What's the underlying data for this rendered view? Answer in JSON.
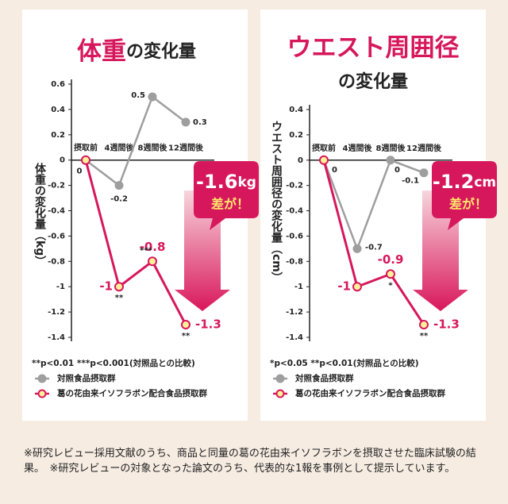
{
  "chart_data": [
    {
      "type": "line",
      "title": {
        "main": "体重",
        "sub": "の変化量"
      },
      "y_label": "体重の変化量（kg）",
      "categories": [
        "摂取前",
        "4週間後",
        "8週間後",
        "12週間後"
      ],
      "ylim": [
        -1.4,
        0.6
      ],
      "yticks": [
        0.6,
        0.4,
        0.2,
        0,
        -0.2,
        -0.4,
        -0.6,
        -0.8,
        -1,
        -1.2,
        -1.4
      ],
      "series": [
        {
          "name": "対照食品摂取群",
          "color": "#9e9e9e",
          "marker_fill": "#9e9e9e",
          "values": [
            0,
            -0.2,
            0.5,
            0.3
          ]
        },
        {
          "name": "葛の花由来イソフラボン配合食品摂取群",
          "color": "#d6175c",
          "marker_fill": "#fff09a",
          "values": [
            0,
            -1,
            -0.8,
            -1.3
          ],
          "significance": [
            null,
            "**",
            "***",
            "**"
          ]
        }
      ],
      "callout": {
        "value": "-1.6",
        "unit": "kg",
        "text": "差が！"
      },
      "footnote": "**p<0.01 ***p<0.001(対照品との比較)"
    },
    {
      "type": "line",
      "title": {
        "main": "ウエスト周囲径",
        "sub": "の変化量"
      },
      "y_label": "ウエスト周囲径の変化量（cm）",
      "categories": [
        "摂取前",
        "4週間後",
        "8週間後",
        "12週間後"
      ],
      "ylim": [
        -1.4,
        0.4
      ],
      "yticks": [
        0.4,
        0.2,
        0,
        -0.2,
        -0.4,
        -0.6,
        -0.8,
        -1,
        -1.2,
        -1.4
      ],
      "series": [
        {
          "name": "対照食品摂取群",
          "color": "#9e9e9e",
          "marker_fill": "#9e9e9e",
          "values": [
            0,
            -0.7,
            0,
            -0.1
          ]
        },
        {
          "name": "葛の花由来イソフラボン配合食品摂取群",
          "color": "#d6175c",
          "marker_fill": "#fff09a",
          "values": [
            0,
            -1,
            -0.9,
            -1.3
          ],
          "significance": [
            null,
            null,
            "*",
            "**"
          ]
        }
      ],
      "callout": {
        "value": "-1.2",
        "unit": "cm",
        "text": "差が！"
      },
      "footnote": "*p<0.05 **p<0.01(対照品との比較)"
    }
  ],
  "note": "※研究レビュー採用文献のうち、商品と同量の葛の花由来イソフラボンを摂取させた臨床試験の結果。　※研究レビューの対象となった論文のうち、代表的な1報を事例として提示しています。"
}
